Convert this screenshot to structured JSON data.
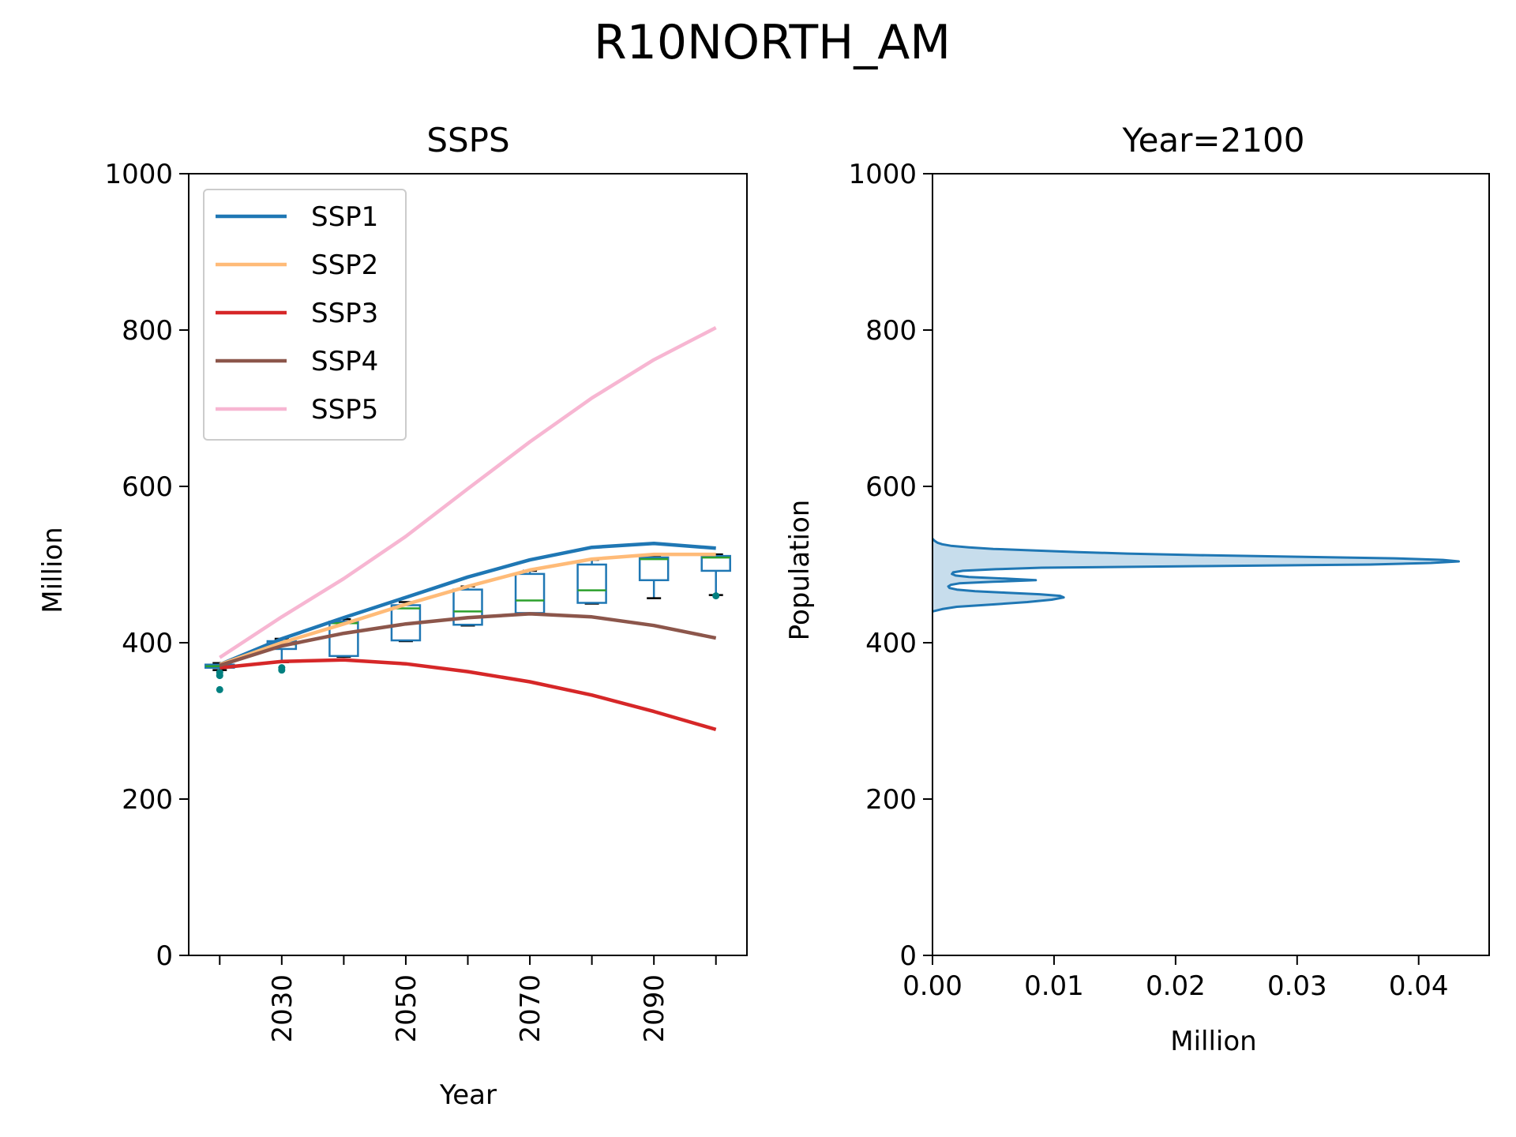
{
  "figure_title": "R10NORTH_AM",
  "chart_data": [
    {
      "type": "line",
      "title": "SSPS",
      "xlabel": "Year",
      "ylabel": "Million",
      "ylim": [
        0,
        1000
      ],
      "yticks": [
        0,
        200,
        400,
        600,
        800,
        1000
      ],
      "x": [
        2020,
        2030,
        2040,
        2050,
        2060,
        2070,
        2080,
        2090,
        2100
      ],
      "xtick_labels": [
        "2030",
        "2050",
        "2070",
        "2090"
      ],
      "legend_placement": "upper-left",
      "series": [
        {
          "name": "SSP1",
          "color": "#1f77b4",
          "values": [
            372,
            405,
            432,
            458,
            484,
            506,
            522,
            527,
            521
          ]
        },
        {
          "name": "SSP2",
          "color": "#ffbb78",
          "values": [
            372,
            400,
            424,
            449,
            472,
            493,
            507,
            513,
            513
          ]
        },
        {
          "name": "SSP3",
          "color": "#d62728",
          "values": [
            368,
            376,
            378,
            373,
            363,
            350,
            333,
            312,
            289
          ]
        },
        {
          "name": "SSP4",
          "color": "#8c564b",
          "values": [
            371,
            396,
            412,
            424,
            432,
            437,
            433,
            422,
            406
          ]
        },
        {
          "name": "SSP5",
          "color": "#f7b6d2",
          "values": [
            381,
            433,
            482,
            536,
            597,
            657,
            713,
            762,
            803
          ]
        }
      ],
      "boxplot": {
        "color": "#1f77b4",
        "median_color": "#2ca02c",
        "flier_color": "#008080",
        "boxes": [
          {
            "x": 2020,
            "whislo": 365,
            "q1": 368,
            "med": 370,
            "q3": 372,
            "whishi": 374,
            "fliers": [
              340,
              358,
              362
            ]
          },
          {
            "x": 2030,
            "whislo": 375,
            "q1": 392,
            "med": 398,
            "q3": 402,
            "whishi": 405,
            "fliers": [
              365,
              368
            ]
          },
          {
            "x": 2040,
            "whislo": 382,
            "q1": 383,
            "med": 425,
            "q3": 427,
            "whishi": 430,
            "fliers": []
          },
          {
            "x": 2050,
            "whislo": 402,
            "q1": 403,
            "med": 444,
            "q3": 448,
            "whishi": 452,
            "fliers": []
          },
          {
            "x": 2060,
            "whislo": 422,
            "q1": 423,
            "med": 440,
            "q3": 468,
            "whishi": 472,
            "fliers": []
          },
          {
            "x": 2070,
            "whislo": 437,
            "q1": 438,
            "med": 454,
            "q3": 488,
            "whishi": 492,
            "fliers": []
          },
          {
            "x": 2080,
            "whislo": 450,
            "q1": 451,
            "med": 467,
            "q3": 500,
            "whishi": 506,
            "fliers": []
          },
          {
            "x": 2090,
            "whislo": 457,
            "q1": 480,
            "med": 507,
            "q3": 509,
            "whishi": 511,
            "fliers": []
          },
          {
            "x": 2100,
            "whislo": 461,
            "q1": 492,
            "med": 509,
            "q3": 511,
            "whishi": 513,
            "fliers": [
              460
            ]
          }
        ]
      }
    },
    {
      "type": "area",
      "title": "Year=2100",
      "xlabel": "Million",
      "ylabel": "Population",
      "ylim": [
        0,
        1000
      ],
      "yticks": [
        0,
        200,
        400,
        600,
        800,
        1000
      ],
      "xlim": [
        0,
        0.0458
      ],
      "xticks": [
        0.0,
        0.01,
        0.02,
        0.03,
        0.04
      ],
      "xtick_labels": [
        "0.00",
        "0.01",
        "0.02",
        "0.03",
        "0.04"
      ],
      "color": "#1f77b4",
      "density": {
        "population": [
          440,
          443,
          446,
          449,
          452,
          455,
          458,
          460,
          462,
          464,
          466,
          468,
          470,
          472,
          474,
          476,
          478,
          480,
          482,
          484,
          486,
          488,
          490,
          492,
          494,
          496,
          498,
          500,
          502,
          504,
          506,
          508,
          510,
          512,
          514,
          516,
          518,
          520,
          522,
          524,
          526,
          528,
          530,
          533
        ],
        "million": [
          0.0,
          0.0008,
          0.002,
          0.005,
          0.0078,
          0.0098,
          0.0108,
          0.0105,
          0.0088,
          0.006,
          0.0035,
          0.002,
          0.0014,
          0.0013,
          0.0015,
          0.0022,
          0.005,
          0.0085,
          0.006,
          0.003,
          0.0019,
          0.0016,
          0.0017,
          0.0025,
          0.0052,
          0.009,
          0.022,
          0.036,
          0.041,
          0.0433,
          0.042,
          0.038,
          0.03,
          0.022,
          0.016,
          0.012,
          0.0085,
          0.005,
          0.003,
          0.0015,
          0.0008,
          0.0004,
          0.0002,
          0.0
        ]
      }
    }
  ]
}
